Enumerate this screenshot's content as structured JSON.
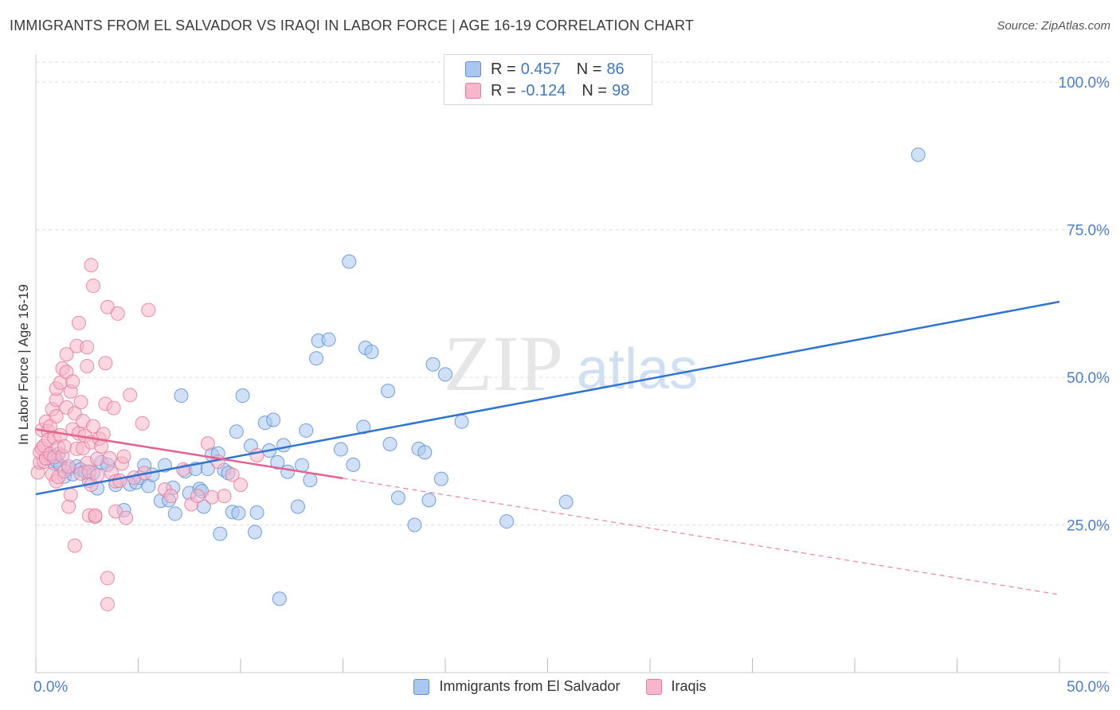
{
  "header": {
    "title": "IMMIGRANTS FROM EL SALVADOR VS IRAQI IN LABOR FORCE | AGE 16-19 CORRELATION CHART",
    "source": "Source: ZipAtlas.com"
  },
  "watermark": {
    "zip": "ZIP",
    "atlas": "atlas"
  },
  "legend_top": {
    "r_label": "R =",
    "n_label": "N =",
    "rows": [
      {
        "r": "0.457",
        "n": "86"
      },
      {
        "r": "-0.124",
        "n": "98"
      }
    ]
  },
  "legend_bottom": [
    {
      "label": "Immigrants from El Salvador"
    },
    {
      "label": "Iraqis"
    }
  ],
  "chart_data": {
    "type": "scatter",
    "title": "IMMIGRANTS FROM EL SALVADOR VS IRAQI IN LABOR FORCE | AGE 16-19 CORRELATION CHART",
    "xlabel": "",
    "ylabel": "In Labor Force | Age 16-19",
    "xlim": [
      0,
      50
    ],
    "ylim": [
      0,
      105
    ],
    "x_tick_labels": [
      {
        "value": 0,
        "label": "0.0%"
      },
      {
        "value": 50,
        "label": "50.0%"
      }
    ],
    "y_tick_labels": [
      {
        "value": 25,
        "label": "25.0%"
      },
      {
        "value": 50,
        "label": "50.0%"
      },
      {
        "value": 75,
        "label": "75.0%"
      },
      {
        "value": 100,
        "label": "100.0%"
      }
    ],
    "grid": true,
    "colors": {
      "blue_fill": "#a9c8f0",
      "blue_stroke": "#5b8fd6",
      "blue_line": "#2f74d0",
      "pink_fill": "#f7b6cb",
      "pink_stroke": "#e47a9e",
      "pink_line": "#e4628e",
      "tick_label": "#4a7fcf"
    },
    "series": [
      {
        "name": "Immigrants from El Salvador",
        "color": "#a9c8f0",
        "trend": {
          "x": [
            0,
            50
          ],
          "y": [
            30.2,
            62.8
          ],
          "style": "solid"
        },
        "points": [
          [
            0.5,
            36.2
          ],
          [
            0.8,
            36.6
          ],
          [
            0.9,
            35.4
          ],
          [
            1.0,
            35.9
          ],
          [
            1.1,
            37.0
          ],
          [
            1.2,
            35.0
          ],
          [
            1.4,
            33.2
          ],
          [
            1.6,
            34.5
          ],
          [
            1.8,
            33.6
          ],
          [
            2.0,
            34.9
          ],
          [
            2.2,
            34.4
          ],
          [
            2.4,
            34.0
          ],
          [
            2.6,
            32.5
          ],
          [
            2.8,
            33.8
          ],
          [
            3.0,
            31.2
          ],
          [
            3.2,
            35.6
          ],
          [
            3.5,
            35.2
          ],
          [
            3.9,
            31.8
          ],
          [
            4.3,
            27.5
          ],
          [
            4.6,
            31.9
          ],
          [
            4.9,
            32.2
          ],
          [
            5.1,
            33.0
          ],
          [
            5.3,
            35.1
          ],
          [
            5.5,
            31.6
          ],
          [
            5.7,
            33.5
          ],
          [
            6.1,
            29.1
          ],
          [
            6.3,
            35.1
          ],
          [
            6.5,
            29.2
          ],
          [
            6.7,
            31.3
          ],
          [
            6.8,
            26.9
          ],
          [
            7.1,
            46.9
          ],
          [
            7.3,
            34.1
          ],
          [
            7.5,
            30.4
          ],
          [
            7.8,
            34.5
          ],
          [
            8.0,
            31.1
          ],
          [
            8.1,
            30.7
          ],
          [
            8.2,
            28.1
          ],
          [
            8.4,
            34.5
          ],
          [
            8.6,
            36.9
          ],
          [
            8.9,
            37.1
          ],
          [
            9.0,
            23.5
          ],
          [
            9.2,
            34.3
          ],
          [
            9.4,
            33.8
          ],
          [
            9.6,
            27.2
          ],
          [
            9.8,
            40.8
          ],
          [
            9.9,
            27.0
          ],
          [
            10.1,
            46.9
          ],
          [
            10.5,
            38.4
          ],
          [
            10.7,
            23.8
          ],
          [
            10.8,
            27.1
          ],
          [
            11.2,
            42.3
          ],
          [
            11.4,
            37.6
          ],
          [
            11.6,
            42.8
          ],
          [
            11.8,
            35.6
          ],
          [
            11.9,
            12.5
          ],
          [
            12.1,
            38.5
          ],
          [
            12.3,
            34.0
          ],
          [
            12.8,
            28.1
          ],
          [
            13.0,
            35.1
          ],
          [
            13.2,
            41.0
          ],
          [
            13.4,
            32.6
          ],
          [
            13.7,
            53.2
          ],
          [
            13.8,
            56.2
          ],
          [
            14.3,
            56.4
          ],
          [
            14.9,
            37.8
          ],
          [
            15.3,
            69.6
          ],
          [
            15.5,
            35.2
          ],
          [
            16.0,
            41.6
          ],
          [
            16.1,
            55.0
          ],
          [
            16.4,
            54.3
          ],
          [
            17.2,
            47.7
          ],
          [
            17.3,
            38.7
          ],
          [
            17.7,
            29.6
          ],
          [
            18.5,
            25.0
          ],
          [
            18.7,
            37.9
          ],
          [
            19.0,
            37.3
          ],
          [
            19.2,
            29.2
          ],
          [
            19.4,
            52.2
          ],
          [
            19.8,
            32.8
          ],
          [
            20.0,
            50.5
          ],
          [
            20.8,
            42.5
          ],
          [
            23.0,
            25.6
          ],
          [
            25.9,
            28.9
          ],
          [
            43.1,
            87.7
          ]
        ]
      },
      {
        "name": "Iraqis",
        "color": "#f7b6cb",
        "trend": {
          "x": [
            0,
            15
          ],
          "y": [
            41.2,
            32.9
          ],
          "extended_x": [
            15,
            50
          ],
          "extended_y": [
            32.9,
            13.2
          ],
          "style": "solid-then-dashed"
        },
        "points": [
          [
            0.1,
            33.9
          ],
          [
            0.2,
            35.6
          ],
          [
            0.2,
            37.3
          ],
          [
            0.3,
            38.0
          ],
          [
            0.3,
            41.1
          ],
          [
            0.4,
            38.4
          ],
          [
            0.4,
            35.7
          ],
          [
            0.5,
            42.5
          ],
          [
            0.5,
            36.3
          ],
          [
            0.6,
            40.9
          ],
          [
            0.6,
            39.4
          ],
          [
            0.7,
            37.0
          ],
          [
            0.7,
            41.7
          ],
          [
            0.8,
            33.6
          ],
          [
            0.8,
            44.6
          ],
          [
            0.9,
            36.5
          ],
          [
            0.9,
            39.8
          ],
          [
            1.0,
            43.4
          ],
          [
            1.0,
            46.2
          ],
          [
            1.0,
            48.1
          ],
          [
            1.0,
            32.4
          ],
          [
            1.1,
            33.1
          ],
          [
            1.1,
            38.1
          ],
          [
            1.2,
            40.2
          ],
          [
            1.2,
            49.1
          ],
          [
            1.3,
            51.5
          ],
          [
            1.3,
            36.7
          ],
          [
            1.4,
            38.3
          ],
          [
            1.4,
            34.1
          ],
          [
            1.5,
            44.9
          ],
          [
            1.5,
            50.9
          ],
          [
            1.5,
            53.9
          ],
          [
            1.6,
            28.1
          ],
          [
            1.6,
            34.9
          ],
          [
            1.7,
            30.1
          ],
          [
            1.7,
            47.6
          ],
          [
            1.8,
            41.2
          ],
          [
            1.8,
            49.3
          ],
          [
            1.9,
            43.9
          ],
          [
            1.9,
            21.5
          ],
          [
            2.0,
            55.3
          ],
          [
            2.0,
            37.9
          ],
          [
            2.1,
            40.5
          ],
          [
            2.1,
            59.2
          ],
          [
            2.2,
            45.8
          ],
          [
            2.2,
            33.7
          ],
          [
            2.3,
            42.6
          ],
          [
            2.3,
            38.0
          ],
          [
            2.4,
            40.1
          ],
          [
            2.5,
            51.9
          ],
          [
            2.5,
            55.1
          ],
          [
            2.5,
            35.5
          ],
          [
            2.6,
            34.0
          ],
          [
            2.6,
            26.6
          ],
          [
            2.7,
            69.0
          ],
          [
            2.7,
            39.0
          ],
          [
            2.7,
            31.8
          ],
          [
            2.8,
            65.5
          ],
          [
            2.8,
            41.7
          ],
          [
            2.9,
            26.4
          ],
          [
            2.9,
            26.6
          ],
          [
            3.0,
            36.2
          ],
          [
            3.0,
            33.4
          ],
          [
            3.1,
            39.6
          ],
          [
            3.2,
            38.3
          ],
          [
            3.3,
            40.4
          ],
          [
            3.4,
            52.4
          ],
          [
            3.4,
            45.5
          ],
          [
            3.5,
            61.9
          ],
          [
            3.5,
            16.0
          ],
          [
            3.5,
            11.6
          ],
          [
            3.6,
            36.3
          ],
          [
            3.7,
            33.8
          ],
          [
            3.8,
            44.8
          ],
          [
            3.9,
            27.3
          ],
          [
            3.9,
            32.4
          ],
          [
            4.0,
            60.8
          ],
          [
            4.1,
            32.5
          ],
          [
            4.2,
            35.4
          ],
          [
            4.3,
            36.6
          ],
          [
            4.4,
            26.2
          ],
          [
            4.6,
            47.0
          ],
          [
            4.8,
            33.0
          ],
          [
            5.2,
            42.2
          ],
          [
            5.3,
            33.8
          ],
          [
            5.5,
            61.4
          ],
          [
            6.3,
            31.0
          ],
          [
            6.6,
            29.9
          ],
          [
            7.2,
            34.4
          ],
          [
            7.6,
            28.5
          ],
          [
            7.9,
            29.9
          ],
          [
            8.4,
            38.8
          ],
          [
            8.6,
            29.7
          ],
          [
            8.9,
            35.7
          ],
          [
            9.2,
            29.9
          ],
          [
            9.6,
            33.5
          ],
          [
            10.0,
            31.8
          ],
          [
            10.8,
            36.8
          ]
        ]
      }
    ]
  }
}
